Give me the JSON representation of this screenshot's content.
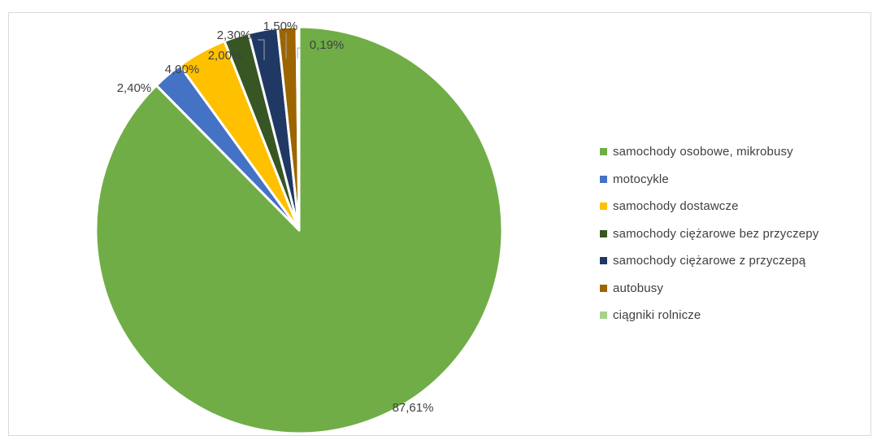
{
  "chart_data": {
    "type": "pie",
    "categories": [
      "samochody osobowe, mikrobusy",
      "motocykle",
      "samochody dostawcze",
      "samochody ciężarowe bez przyczepy",
      "samochody ciężarowe z przyczepą",
      "autobusy",
      "ciągniki rolnicze"
    ],
    "values": [
      87.61,
      2.4,
      4.0,
      2.0,
      2.3,
      1.5,
      0.19
    ],
    "data_labels": [
      "87,61%",
      "2,40%",
      "4,00%",
      "2,00%",
      "2,30%",
      "1,50%",
      "0,19%"
    ],
    "colors": [
      "#70AD47",
      "#4472C4",
      "#FFC000",
      "#375623",
      "#203864",
      "#9C6500",
      "#A9D18E"
    ],
    "legend_position": "right",
    "start_angle": "top, clockwise"
  }
}
